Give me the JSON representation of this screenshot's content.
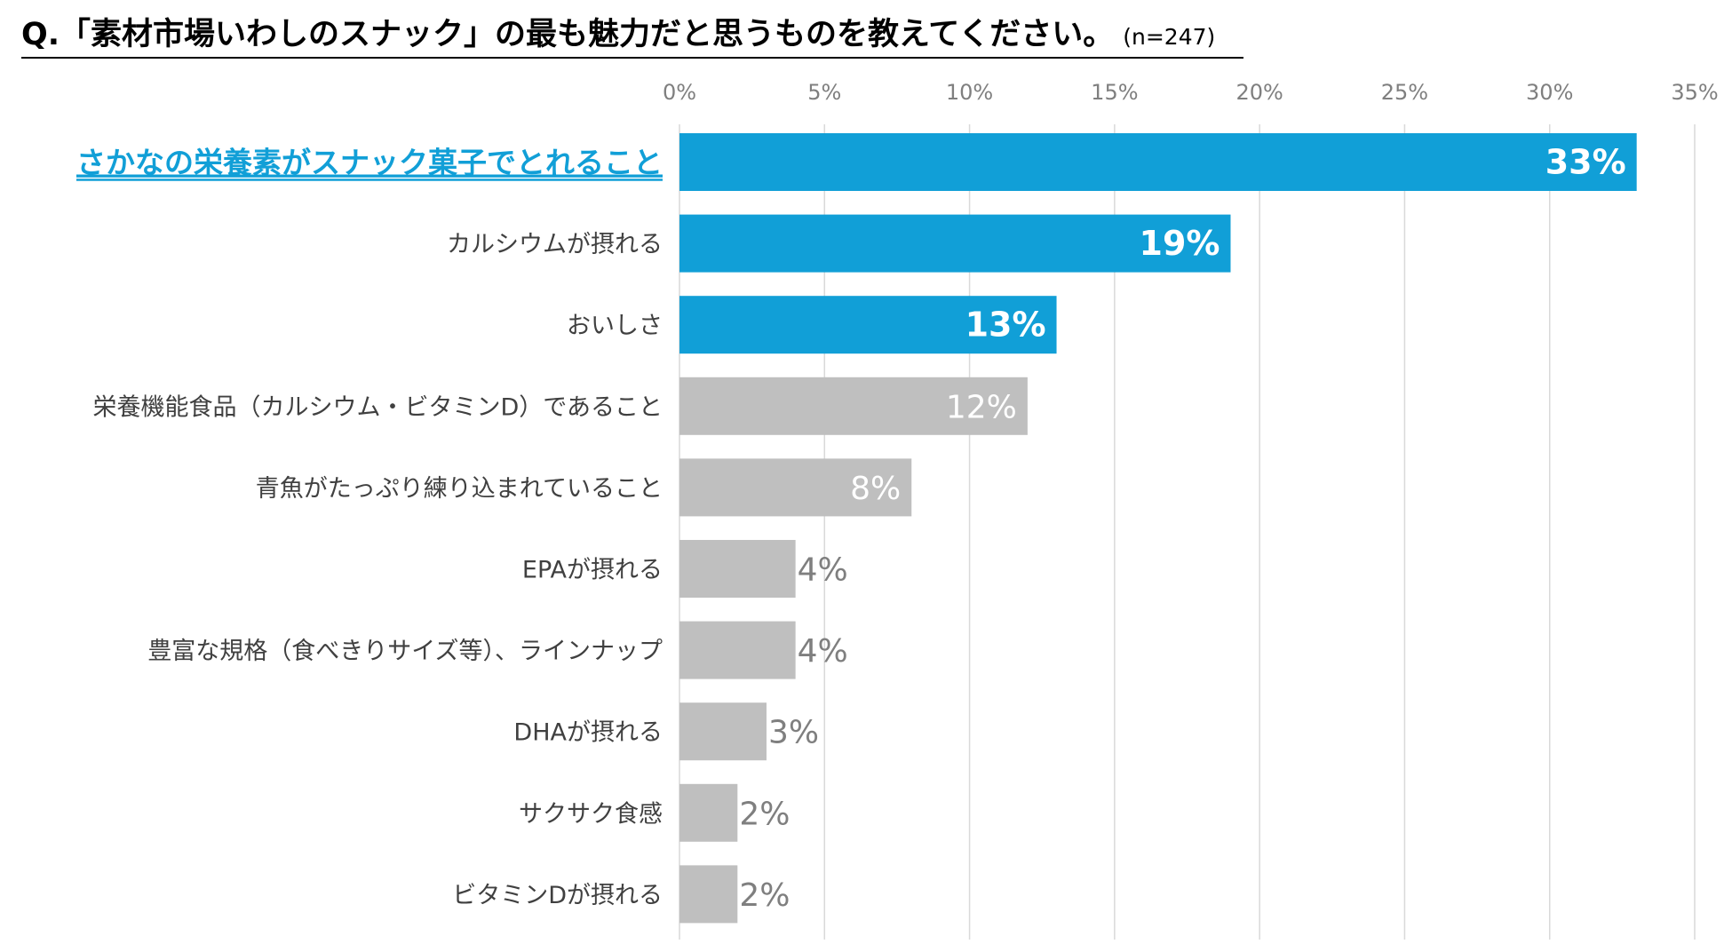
{
  "title": {
    "question": "Q.「素材市場いわしのスナック」の最も魅力だと思うものを教えてください。",
    "sample": "(n=247)"
  },
  "colors": {
    "accent": "#119fd7",
    "gray_bar": "#bfbfbf",
    "grid": "#d9d9d9",
    "label_gray": "#7f7f7f"
  },
  "chart_data": {
    "type": "bar",
    "orientation": "horizontal",
    "title": "Q.「素材市場いわしのスナック」の最も魅力だと思うものを教えてください。",
    "xlabel": "",
    "ylabel": "",
    "xlim": [
      0,
      35
    ],
    "ticks": [
      0,
      5,
      10,
      15,
      20,
      25,
      30,
      35
    ],
    "tick_labels": [
      "0%",
      "5%",
      "10%",
      "15%",
      "20%",
      "25%",
      "30%",
      "35%"
    ],
    "grid": true,
    "categories": [
      "さかなの栄養素がスナック菓子でとれること",
      "カルシウムが摂れる",
      "おいしさ",
      "栄養機能食品（カルシウム・ビタミンD）であること",
      "青魚がたっぷり練り込まれていること",
      "EPAが摂れる",
      "豊富な規格（食べきりサイズ等）、ラインナップ",
      "DHAが摂れる",
      "サクサク食感",
      "ビタミンDが摂れる"
    ],
    "values": [
      33,
      19,
      13,
      12,
      8,
      4,
      4,
      3,
      2,
      2
    ],
    "value_labels": [
      "33%",
      "19%",
      "13%",
      "12%",
      "8%",
      "4%",
      "4%",
      "3%",
      "2%",
      "2%"
    ],
    "highlight": [
      true,
      true,
      true,
      false,
      false,
      false,
      false,
      false,
      false,
      false
    ]
  }
}
